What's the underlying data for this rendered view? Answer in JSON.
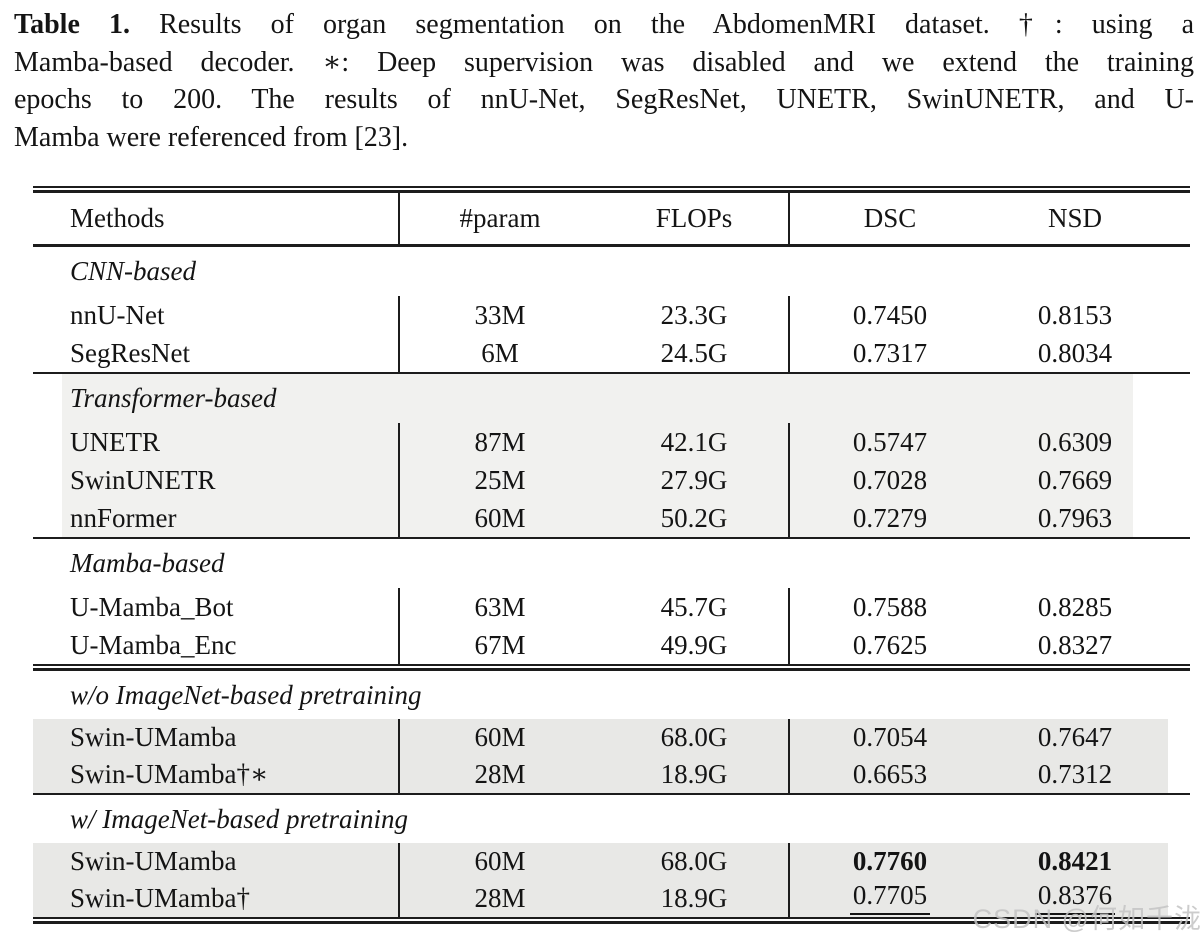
{
  "caption": {
    "label": "Table 1.",
    "line1_rest": "Results of organ segmentation on the AbdomenMRI dataset. †: using a",
    "line2": "Mamba-based decoder. ∗: Deep supervision was disabled and we extend the training",
    "line3": "epochs to 200. The results of nnU-Net, SegResNet, UNETR, SwinUNETR, and U-",
    "line4": "Mamba were referenced from [23]."
  },
  "table": {
    "headers": {
      "methods": "Methods",
      "param": "#param",
      "flops": "FLOPs",
      "dsc": "DSC",
      "nsd": "NSD"
    },
    "sections": [
      {
        "label": "CNN-based",
        "rows": [
          {
            "method": "nnU-Net",
            "param": "33M",
            "flops": "23.3G",
            "dsc": "0.7450",
            "nsd": "0.8153"
          },
          {
            "method": "SegResNet",
            "param": "6M",
            "flops": "24.5G",
            "dsc": "0.7317",
            "nsd": "0.8034"
          }
        ]
      },
      {
        "label": "Transformer-based",
        "rows": [
          {
            "method": "UNETR",
            "param": "87M",
            "flops": "42.1G",
            "dsc": "0.5747",
            "nsd": "0.6309"
          },
          {
            "method": "SwinUNETR",
            "param": "25M",
            "flops": "27.9G",
            "dsc": "0.7028",
            "nsd": "0.7669"
          },
          {
            "method": "nnFormer",
            "param": "60M",
            "flops": "50.2G",
            "dsc": "0.7279",
            "nsd": "0.7963"
          }
        ]
      },
      {
        "label": "Mamba-based",
        "rows": [
          {
            "method": "U-Mamba_Bot",
            "param": "63M",
            "flops": "45.7G",
            "dsc": "0.7588",
            "nsd": "0.8285"
          },
          {
            "method": "U-Mamba_Enc",
            "param": "67M",
            "flops": "49.9G",
            "dsc": "0.7625",
            "nsd": "0.8327"
          }
        ]
      },
      {
        "label": "w/o ImageNet-based pretraining",
        "rows": [
          {
            "method": "Swin-UMamba",
            "param": "60M",
            "flops": "68.0G",
            "dsc": "0.7054",
            "nsd": "0.7647"
          },
          {
            "method": "Swin-UMamba†∗",
            "param": "28M",
            "flops": "18.9G",
            "dsc": "0.6653",
            "nsd": "0.7312"
          }
        ]
      },
      {
        "label": "w/ ImageNet-based pretraining",
        "rows": [
          {
            "method": "Swin-UMamba",
            "param": "60M",
            "flops": "68.0G",
            "dsc": "0.7760",
            "nsd": "0.8421"
          },
          {
            "method": "Swin-UMamba†",
            "param": "28M",
            "flops": "18.9G",
            "dsc": "0.7705",
            "nsd": "0.8376"
          }
        ]
      }
    ]
  },
  "watermark": "CSDN @何如千泷"
}
